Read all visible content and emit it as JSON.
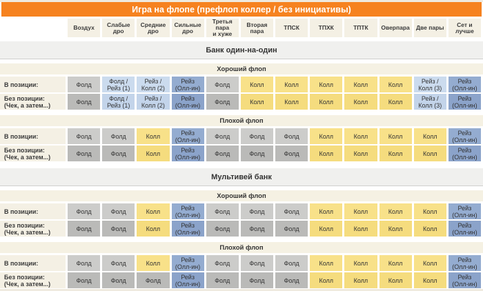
{
  "title": "Игра на флопе (префлоп коллер / без инициативы)",
  "colors": {
    "accent": "#F6821F",
    "fold": "#CCCCCA",
    "fold_alt": "#BABAB8",
    "call": "#F8E189",
    "call_alt": "#F5DC7E",
    "mix": "#CBDBEE",
    "mix_alt": "#C3D4EA",
    "allin": "#94ACD0",
    "allin_alt": "#8BA3CA",
    "band_gray": "#F0F0EE",
    "band_beige": "#F5F1E3",
    "header_cell": "#F4F0E4"
  },
  "chart_data": {
    "type": "table",
    "title": "Игра на флопе (префлоп коллер / без инициативы)",
    "columns": [
      "Воздух",
      "Слабые\nдро",
      "Средние\nдро",
      "Сильные\nдро",
      "Третья пара\nи хуже",
      "Вторая пара",
      "ТПСК",
      "ТПХК",
      "ТПТК",
      "Оверпара",
      "Две пары",
      "Сет и лучше"
    ],
    "sections": [
      {
        "title": "Банк один-на-один",
        "flops": [
          {
            "title": "Хороший флоп",
            "rows": [
              {
                "label": "В позиции:",
                "cells": [
                  {
                    "text": "Фолд",
                    "style": "fold"
                  },
                  {
                    "text": "Фолд /\nРейз (1)",
                    "style": "mix"
                  },
                  {
                    "text": "Рейз /\nКолл (2)",
                    "style": "mix"
                  },
                  {
                    "text": "Рейз\n(Олл-ин)",
                    "style": "allin"
                  },
                  {
                    "text": "Фолд",
                    "style": "fold"
                  },
                  {
                    "text": "Колл",
                    "style": "call"
                  },
                  {
                    "text": "Колл",
                    "style": "call"
                  },
                  {
                    "text": "Колл",
                    "style": "call"
                  },
                  {
                    "text": "Колл",
                    "style": "call"
                  },
                  {
                    "text": "Колл",
                    "style": "call"
                  },
                  {
                    "text": "Рейз /\nКолл (3)",
                    "style": "mix"
                  },
                  {
                    "text": "Рейз\n(Олл-ин)",
                    "style": "allin"
                  }
                ]
              },
              {
                "label": "Без позиции:\n(Чек, а затем...)",
                "cells": [
                  {
                    "text": "Фолд",
                    "style": "fold"
                  },
                  {
                    "text": "Фолд /\nРейз (1)",
                    "style": "mix"
                  },
                  {
                    "text": "Рейз /\nКолл (2)",
                    "style": "mix"
                  },
                  {
                    "text": "Рейз\n(Олл-ин)",
                    "style": "allin"
                  },
                  {
                    "text": "Фолд",
                    "style": "fold"
                  },
                  {
                    "text": "Колл",
                    "style": "call"
                  },
                  {
                    "text": "Колл",
                    "style": "call"
                  },
                  {
                    "text": "Колл",
                    "style": "call"
                  },
                  {
                    "text": "Колл",
                    "style": "call"
                  },
                  {
                    "text": "Колл",
                    "style": "call"
                  },
                  {
                    "text": "Рейз /\nКолл (3)",
                    "style": "mix"
                  },
                  {
                    "text": "Рейз\n(Олл-ин)",
                    "style": "allin"
                  }
                ]
              }
            ]
          },
          {
            "title": "Плохой флоп",
            "rows": [
              {
                "label": "В позиции:",
                "cells": [
                  {
                    "text": "Фолд",
                    "style": "fold"
                  },
                  {
                    "text": "Фолд",
                    "style": "fold"
                  },
                  {
                    "text": "Колл",
                    "style": "call"
                  },
                  {
                    "text": "Рейз\n(Олл-ин)",
                    "style": "allin"
                  },
                  {
                    "text": "Фолд",
                    "style": "fold"
                  },
                  {
                    "text": "Фолд",
                    "style": "fold"
                  },
                  {
                    "text": "Фолд",
                    "style": "fold"
                  },
                  {
                    "text": "Колл",
                    "style": "call"
                  },
                  {
                    "text": "Колл",
                    "style": "call"
                  },
                  {
                    "text": "Колл",
                    "style": "call"
                  },
                  {
                    "text": "Колл",
                    "style": "call"
                  },
                  {
                    "text": "Рейз\n(Олл-ин)",
                    "style": "allin"
                  }
                ]
              },
              {
                "label": "Без позиции:\n(Чек, а затем...)",
                "cells": [
                  {
                    "text": "Фолд",
                    "style": "fold"
                  },
                  {
                    "text": "Фолд",
                    "style": "fold"
                  },
                  {
                    "text": "Колл",
                    "style": "call"
                  },
                  {
                    "text": "Рейз\n(Олл-ин)",
                    "style": "allin"
                  },
                  {
                    "text": "Фолд",
                    "style": "fold"
                  },
                  {
                    "text": "Фолд",
                    "style": "fold"
                  },
                  {
                    "text": "Фолд",
                    "style": "fold"
                  },
                  {
                    "text": "Колл",
                    "style": "call"
                  },
                  {
                    "text": "Колл",
                    "style": "call"
                  },
                  {
                    "text": "Колл",
                    "style": "call"
                  },
                  {
                    "text": "Колл",
                    "style": "call"
                  },
                  {
                    "text": "Рейз\n(Олл-ин)",
                    "style": "allin"
                  }
                ]
              }
            ]
          }
        ]
      },
      {
        "title": "Мультивей банк",
        "flops": [
          {
            "title": "Хороший флоп",
            "rows": [
              {
                "label": "В позиции:",
                "cells": [
                  {
                    "text": "Фолд",
                    "style": "fold"
                  },
                  {
                    "text": "Фолд",
                    "style": "fold"
                  },
                  {
                    "text": "Колл",
                    "style": "call"
                  },
                  {
                    "text": "Рейз\n(Олл-ин)",
                    "style": "allin"
                  },
                  {
                    "text": "Фолд",
                    "style": "fold"
                  },
                  {
                    "text": "Фолд",
                    "style": "fold"
                  },
                  {
                    "text": "Фолд",
                    "style": "fold"
                  },
                  {
                    "text": "Колл",
                    "style": "call"
                  },
                  {
                    "text": "Колл",
                    "style": "call"
                  },
                  {
                    "text": "Колл",
                    "style": "call"
                  },
                  {
                    "text": "Колл",
                    "style": "call"
                  },
                  {
                    "text": "Рейз\n(Олл-ин)",
                    "style": "allin"
                  }
                ]
              },
              {
                "label": "Без позиции:\n(Чек, а затем...)",
                "cells": [
                  {
                    "text": "Фолд",
                    "style": "fold"
                  },
                  {
                    "text": "Фолд",
                    "style": "fold"
                  },
                  {
                    "text": "Колл",
                    "style": "call"
                  },
                  {
                    "text": "Рейз\n(Олл-ин)",
                    "style": "allin"
                  },
                  {
                    "text": "Фолд",
                    "style": "fold"
                  },
                  {
                    "text": "Фолд",
                    "style": "fold"
                  },
                  {
                    "text": "Фолд",
                    "style": "fold"
                  },
                  {
                    "text": "Колл",
                    "style": "call"
                  },
                  {
                    "text": "Колл",
                    "style": "call"
                  },
                  {
                    "text": "Колл",
                    "style": "call"
                  },
                  {
                    "text": "Колл",
                    "style": "call"
                  },
                  {
                    "text": "Рейз\n(Олл-ин)",
                    "style": "allin"
                  }
                ]
              }
            ]
          },
          {
            "title": "Плохой флоп",
            "rows": [
              {
                "label": "В позиции:",
                "cells": [
                  {
                    "text": "Фолд",
                    "style": "fold"
                  },
                  {
                    "text": "Фолд",
                    "style": "fold"
                  },
                  {
                    "text": "Колл",
                    "style": "call"
                  },
                  {
                    "text": "Рейз\n(Олл-ин)",
                    "style": "allin"
                  },
                  {
                    "text": "Фолд",
                    "style": "fold"
                  },
                  {
                    "text": "Фолд",
                    "style": "fold"
                  },
                  {
                    "text": "Фолд",
                    "style": "fold"
                  },
                  {
                    "text": "Колл",
                    "style": "call"
                  },
                  {
                    "text": "Колл",
                    "style": "call"
                  },
                  {
                    "text": "Колл",
                    "style": "call"
                  },
                  {
                    "text": "Колл",
                    "style": "call"
                  },
                  {
                    "text": "Рейз\n(Олл-ин)",
                    "style": "allin"
                  }
                ]
              },
              {
                "label": "Без позиции:\n(Чек, а затем...)",
                "cells": [
                  {
                    "text": "Фолд",
                    "style": "fold"
                  },
                  {
                    "text": "Фолд",
                    "style": "fold"
                  },
                  {
                    "text": "Фолд",
                    "style": "fold"
                  },
                  {
                    "text": "Рейз\n(Олл-ин)",
                    "style": "allin"
                  },
                  {
                    "text": "Фолд",
                    "style": "fold"
                  },
                  {
                    "text": "Фолд",
                    "style": "fold"
                  },
                  {
                    "text": "Фолд",
                    "style": "fold"
                  },
                  {
                    "text": "Колл",
                    "style": "call"
                  },
                  {
                    "text": "Колл",
                    "style": "call"
                  },
                  {
                    "text": "Колл",
                    "style": "call"
                  },
                  {
                    "text": "Колл",
                    "style": "call"
                  },
                  {
                    "text": "Рейз\n(Олл-ин)",
                    "style": "allin"
                  }
                ]
              }
            ]
          }
        ]
      }
    ]
  }
}
